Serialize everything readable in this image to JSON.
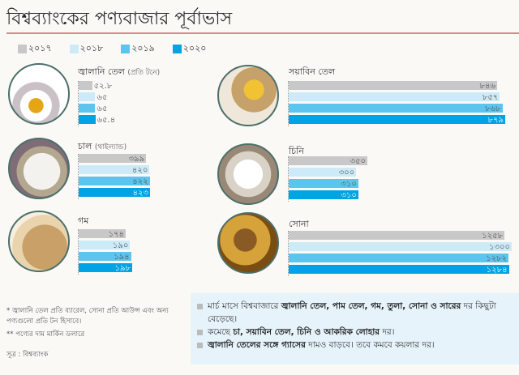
{
  "title": "বিশ্বব্যাংকের পণ্যবাজার পূর্বাভাস",
  "colors": {
    "2017": "#c8c8c8",
    "2018": "#cdeaf8",
    "2019": "#5bc5ef",
    "2020": "#00a3e4"
  },
  "chart_data": {
    "type": "bar",
    "title": "বিশ্বব্যাংকের পণ্যবাজার পূর্বাভাস",
    "legend": [
      "২০১৭",
      "২০১৮",
      "২০১৯",
      "২০২০"
    ],
    "series_years": [
      2017,
      2018,
      2019,
      2020
    ],
    "panels": [
      {
        "id": "oil",
        "name": "জ্বালানি তেল",
        "note": "(প্রতি টনে)",
        "values": [
          52.8,
          65,
          65,
          65.4
        ],
        "labels": [
          "৫২.৮",
          "৬৫",
          "৬৫",
          "৬৫.৪"
        ]
      },
      {
        "id": "soy",
        "name": "সয়াবিন তেল",
        "note": "",
        "values": [
          846,
          857,
          868,
          879
        ],
        "labels": [
          "৮৪৬",
          "৮৫৭",
          "৮৬৮",
          "৮৭৯"
        ]
      },
      {
        "id": "rice",
        "name": "চাল",
        "note": "(থাইল্যান্ড)",
        "values": [
          399,
          420,
          422,
          423
        ],
        "labels": [
          "৩৯৯",
          "৪২০",
          "৪২২",
          "৪২৩"
        ]
      },
      {
        "id": "sugar",
        "name": "চিনি",
        "note": "",
        "values": [
          350,
          300,
          310,
          310
        ],
        "labels": [
          "৩৫০",
          "৩০০",
          "৩১০",
          "৩১০"
        ]
      },
      {
        "id": "wheat",
        "name": "গম",
        "note": "",
        "values": [
          174,
          190,
          194,
          198
        ],
        "labels": [
          "১৭৪",
          "১৯০",
          "১৯৪",
          "১৯৮"
        ]
      },
      {
        "id": "gold",
        "name": "সোনা",
        "note": "",
        "values": [
          1258,
          1300,
          1282,
          1284
        ],
        "labels": [
          "১২৫৮",
          "১৩০০",
          "১২৮২",
          "১২৮৪"
        ]
      }
    ]
  },
  "notes": {
    "n1": "* জ্বালানি তেল প্রতি ব্যারেল, সোনা প্রতি আউন্স এবং অন্য পণ্যগুলো প্রতি টন হিসাবে।",
    "n2": "** পণ্যের দাম মার্কিন ডলারে",
    "source": "সূত্র : বিশ্বব্যাংক"
  },
  "bullets": [
    {
      "pre": "মার্চ মাসে বিশ্ববাজারে ",
      "bold": "জ্বালানি তেল, পাম তেল, গম, তুলা, সোনা ও সারের",
      "post": " দর কিছুটা বেড়েছে।"
    },
    {
      "pre": "কমেছে ",
      "bold": "চা, সয়াবিন তেল, চিনি ও আকরিক লোহার",
      "post": " দর।"
    },
    {
      "pre": "",
      "bold": "জ্বালানি তেলের সঙ্গে গ্যাসের",
      "post": " দামও বাড়বে। তবে কমবে কয়লার দর।"
    }
  ]
}
